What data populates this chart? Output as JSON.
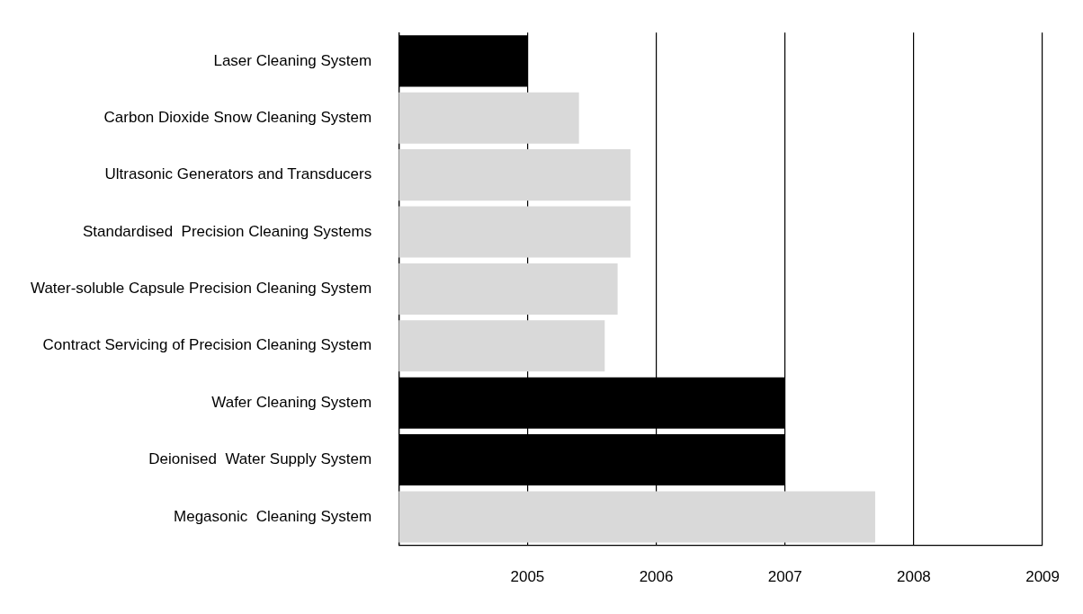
{
  "chart_data": {
    "type": "bar",
    "orientation": "horizontal",
    "categories": [
      "Laser Cleaning System",
      "Carbon Dioxide Snow Cleaning System",
      "Ultrasonic Generators and Transducers",
      "Standardised  Precision Cleaning Systems",
      "Water-soluble Capsule Precision Cleaning System",
      "Contract Servicing of Precision Cleaning System",
      "Wafer Cleaning System",
      "Deionised  Water Supply System",
      "Megasonic  Cleaning System"
    ],
    "base": [
      2004,
      2004,
      2004,
      2004,
      2004,
      2004,
      2004,
      2004,
      2004
    ],
    "values": [
      1,
      1.4,
      1.8,
      1.8,
      1.7,
      1.6,
      3,
      3,
      3.7
    ],
    "colors": [
      "#000000",
      "#d9d9d9",
      "#d9d9d9",
      "#d9d9d9",
      "#d9d9d9",
      "#d9d9d9",
      "#000000",
      "#000000",
      "#d9d9d9"
    ],
    "xlim": [
      2004,
      2009
    ],
    "xticks": [
      {
        "value": 2004,
        "label": null
      },
      2005,
      2006,
      2007,
      2008,
      2009
    ],
    "grid": "x",
    "legend": false
  }
}
